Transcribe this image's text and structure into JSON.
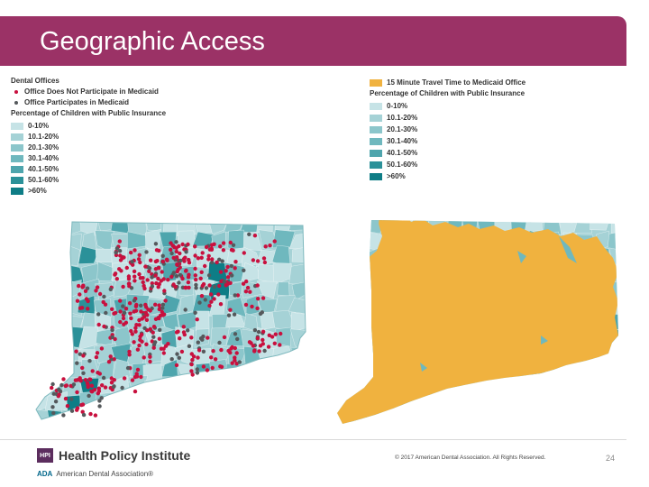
{
  "slide": {
    "title": "Geographic Access",
    "page_number": "24",
    "copyright": "© 2017 American Dental Association. All Rights Reserved.",
    "brand_hpi_mark": "HPI",
    "brand_hpi": "Health Policy Institute",
    "brand_ada_mark": "ADA",
    "brand_ada": "American Dental Association®"
  },
  "left_legend": {
    "heading": "Dental Offices",
    "point_items": [
      {
        "label": "Office Does Not Participate in Medicaid",
        "color": "#c8103e"
      },
      {
        "label": "Office Participates in Medicaid",
        "color": "#55595c"
      }
    ],
    "subheading": "Percentage of Children with Public Insurance",
    "ranges": [
      {
        "label": "0-10%",
        "color": "#c6e3e6"
      },
      {
        "label": "10.1-20%",
        "color": "#a5d2d6"
      },
      {
        "label": "20.1-30%",
        "color": "#8cc6cb"
      },
      {
        "label": "30.1-40%",
        "color": "#6fb8be"
      },
      {
        "label": "40.1-50%",
        "color": "#4ea5ad"
      },
      {
        "label": "50.1-60%",
        "color": "#2b9199"
      },
      {
        "label": ">60%",
        "color": "#0e7d86"
      }
    ]
  },
  "right_legend": {
    "overlay_label": "15 Minute Travel Time to Medicaid Office",
    "overlay_color": "#f0b23f",
    "subheading": "Percentage of Children with Public Insurance",
    "ranges": [
      {
        "label": "0-10%",
        "color": "#c6e3e6"
      },
      {
        "label": "10.1-20%",
        "color": "#a5d2d6"
      },
      {
        "label": "20.1-30%",
        "color": "#8cc6cb"
      },
      {
        "label": "30.1-40%",
        "color": "#6fb8be"
      },
      {
        "label": "40.1-50%",
        "color": "#4ea5ad"
      },
      {
        "label": "50.1-60%",
        "color": "#2b9199"
      },
      {
        "label": ">60%",
        "color": "#0e7d86"
      }
    ]
  }
}
